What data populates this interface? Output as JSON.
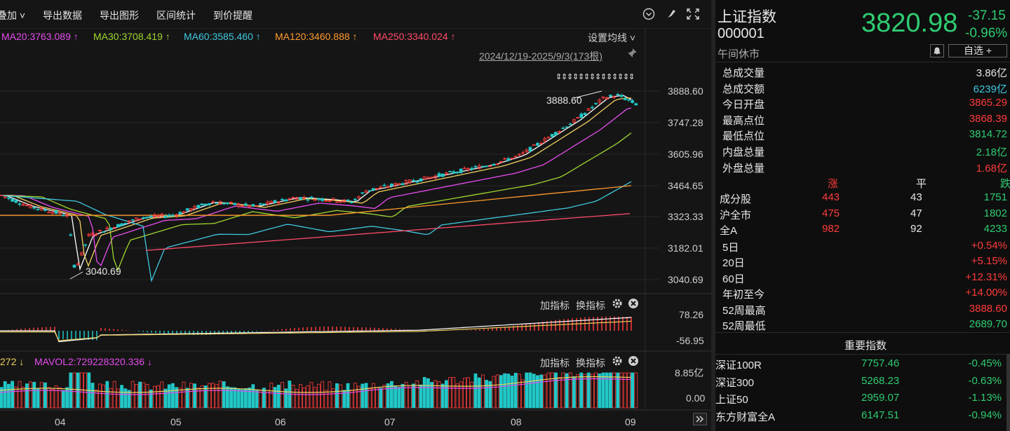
{
  "toolbar": {
    "overlay_label": "叠加",
    "export_data": "导出数据",
    "export_chart": "导出图形",
    "range_stats": "区间统计",
    "price_alert": "到价提醒"
  },
  "ma_legend": [
    {
      "text": "MA20:3763.089 ↑",
      "color": "#e84cf0"
    },
    {
      "text": "MA30:3708.419 ↑",
      "color": "#9fd62f"
    },
    {
      "text": "MA60:3585.460 ↑",
      "color": "#3fc8e0"
    },
    {
      "text": "MA120:3460.888 ↑",
      "color": "#ff9a2e"
    },
    {
      "text": "MA250:3340.024 ↑",
      "color": "#ff4a6a"
    }
  ],
  "ma_settings": "设置均线 ˅",
  "date_range": "2024/12/19-2025/9/3(173根)",
  "price_axis": [
    "3888.60",
    "3747.28",
    "3605.96",
    "3464.65",
    "3323.33",
    "3182.01",
    "3040.69"
  ],
  "annotations": {
    "high": "3888.60",
    "low": "3040.69"
  },
  "macd_axis": [
    "78.26",
    "-56.95"
  ],
  "vol_axis": [
    "8.85亿",
    "0.00"
  ],
  "macd_tools": {
    "add": "加指标",
    "switch": "换指标"
  },
  "vol_legend": {
    "left": "272 ↓",
    "mavol2": "MAVOL2:729228320.336 ↓"
  },
  "x_axis": [
    "04",
    "05",
    "06",
    "07",
    "08",
    "09"
  ],
  "colors": {
    "up": "#ff3b3b",
    "down": "#22c7c7",
    "green": "#2fcc71",
    "red": "#ff3b3b"
  },
  "quote": {
    "name": "上证指数",
    "code": "000001",
    "status": "午间休市",
    "price": "3820.98",
    "change": "-37.15",
    "change_pct": "-0.96%",
    "watch_label": "自选 +"
  },
  "stats": [
    {
      "label": "总成交量",
      "value": "3.86亿",
      "color": "white"
    },
    {
      "label": "总成交额",
      "value": "6239亿",
      "color": "cyan"
    },
    {
      "label": "今日开盘",
      "value": "3865.29",
      "color": "red"
    },
    {
      "label": "最高点位",
      "value": "3868.39",
      "color": "red"
    },
    {
      "label": "最低点位",
      "value": "3814.72",
      "color": "green"
    },
    {
      "label": "内盘总量",
      "value": "2.18亿",
      "color": "green"
    },
    {
      "label": "外盘总量",
      "value": "1.68亿",
      "color": "red"
    }
  ],
  "breadth_header": {
    "up": "涨",
    "flat": "平",
    "down": "跌"
  },
  "breadth": [
    {
      "label": "成分股",
      "up": "443",
      "flat": "43",
      "down": "1751"
    },
    {
      "label": "沪全市",
      "up": "475",
      "flat": "47",
      "down": "1802"
    },
    {
      "label": "全A",
      "up": "982",
      "flat": "92",
      "down": "4233"
    }
  ],
  "periods": [
    {
      "label": "5日",
      "value": "+0.54%",
      "color": "red"
    },
    {
      "label": "20日",
      "value": "+5.15%",
      "color": "red"
    },
    {
      "label": "60日",
      "value": "+12.31%",
      "color": "red"
    },
    {
      "label": "年初至今",
      "value": "+14.00%",
      "color": "red"
    },
    {
      "label": "52周最高",
      "value": "3888.60",
      "color": "red"
    },
    {
      "label": "52周最低",
      "value": "2689.70",
      "color": "green"
    }
  ],
  "indices_title": "重要指数",
  "indices": [
    {
      "name": "深证100R",
      "value": "7757.46",
      "pct": "-0.45%"
    },
    {
      "name": "深证300",
      "value": "5268.23",
      "pct": "-0.63%"
    },
    {
      "name": "上证50",
      "value": "2959.07",
      "pct": "-1.13%"
    },
    {
      "name": "东方财富全A",
      "value": "6147.51",
      "pct": "-0.94%"
    }
  ]
}
